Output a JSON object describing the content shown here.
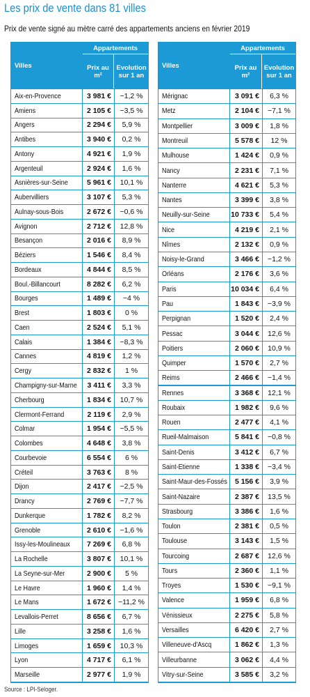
{
  "title": "Les prix de vente dans 81 villes",
  "subtitle": "Prix de vente signé au mètre carré des appartements anciens en février 2019",
  "tables": [
    {
      "headers": {
        "city": "Villes",
        "group": "Appartements",
        "price": "Prix au m²",
        "change": "Evolution sur 1 an"
      },
      "rows": [
        [
          "Aix-en-Provence",
          "3 981 €",
          "−1,2 %"
        ],
        [
          "Amiens",
          "2 105 €",
          "−3,5 %"
        ],
        [
          "Angers",
          "2 294 €",
          "5,9 %"
        ],
        [
          "Antibes",
          "3 940 €",
          "0,2 %"
        ],
        [
          "Antony",
          "4 921 €",
          "1,9 %"
        ],
        [
          "Argenteuil",
          "2 924 €",
          "1,6 %"
        ],
        [
          "Asnières-sur-Seine",
          "5 961 €",
          "10,1 %"
        ],
        [
          "Aubervilliers",
          "3 107 €",
          "5,3 %"
        ],
        [
          "Aulnay-sous-Bois",
          "2 672 €",
          "−0,6 %"
        ],
        [
          "Avignon",
          "2 712 €",
          "12,8 %"
        ],
        [
          "Besançon",
          "2 016 €",
          "8,9 %"
        ],
        [
          "Béziers",
          "1 546 €",
          "8,4 %"
        ],
        [
          "Bordeaux",
          "4 844 €",
          "8,5 %"
        ],
        [
          "Boul.-Billancourt",
          "8 282 €",
          "6,2 %"
        ],
        [
          "Bourges",
          "1 489 €",
          "−4 %"
        ],
        [
          "Brest",
          "1 803 €",
          "0 %"
        ],
        [
          "Caen",
          "2 524 €",
          "5,1 %"
        ],
        [
          "Calais",
          "1 384 €",
          "−8,3 %"
        ],
        [
          "Cannes",
          "4 819 €",
          "1,2 %"
        ],
        [
          "Cergy",
          "2 832 €",
          "1 %"
        ],
        [
          "Champigny-sur-Marne",
          "3 411 €",
          "3,3 %"
        ],
        [
          "Cherbourg",
          "1 834 €",
          "10,7 %"
        ],
        [
          "Clermont-Ferrand",
          "2 119 €",
          "2,9 %"
        ],
        [
          "Colmar",
          "1 954 €",
          "−5,5 %"
        ],
        [
          "Colombes",
          "4 648 €",
          "3,8 %"
        ],
        [
          "Courbevoie",
          "6 554 €",
          "6 %"
        ],
        [
          "Créteil",
          "3 763 €",
          "8 %"
        ],
        [
          "Dijon",
          "2 417 €",
          "−2,5 %"
        ],
        [
          "Drancy",
          "2 769 €",
          "−7,7 %"
        ],
        [
          "Dunkerque",
          "1 782 €",
          "8,2 %"
        ],
        [
          "Grenoble",
          "2 610 €",
          "−1,6 %"
        ],
        [
          "Issy-les-Moulineaux",
          "7 269 €",
          "6,8 %"
        ],
        [
          "La Rochelle",
          "3 807 €",
          "10,1 %"
        ],
        [
          "La Seyne-sur-Mer",
          "2 900 €",
          "5 %"
        ],
        [
          "Le Havre",
          "1 960 €",
          "1,4 %"
        ],
        [
          "Le Mans",
          "1 672 €",
          "−11,2 %"
        ],
        [
          "Levallois-Perret",
          "8 656 €",
          "6,7 %"
        ],
        [
          "Lille",
          "3 258 €",
          "1,6 %"
        ],
        [
          "Limoges",
          "1 659 €",
          "10,3 %"
        ],
        [
          "Lyon",
          "4 717 €",
          "6,1 %"
        ],
        [
          "Marseille",
          "2 977 €",
          "1,9 %"
        ]
      ]
    },
    {
      "headers": {
        "city": "Villes",
        "group": "Appartements",
        "price": "Prix au m²",
        "change": "Evolution sur 1 an"
      },
      "rows": [
        [
          "Mérignac",
          "3 091 €",
          "6,3 %"
        ],
        [
          "Metz",
          "2 104 €",
          "−7,1 %"
        ],
        [
          "Montpellier",
          "3 009 €",
          "1,8 %"
        ],
        [
          "Montreuil",
          "5 578 €",
          "12 %"
        ],
        [
          "Mulhouse",
          "1 424 €",
          "0,9 %"
        ],
        [
          "Nancy",
          "2 231 €",
          "7,1 %"
        ],
        [
          "Nanterre",
          "4 621 €",
          "5,3 %"
        ],
        [
          "Nantes",
          "3 399 €",
          "3,8 %"
        ],
        [
          "Neuilly-sur-Seine",
          "10 733 €",
          "5,4 %"
        ],
        [
          "Nice",
          "4 219 €",
          "2,1 %"
        ],
        [
          "Nîmes",
          "2 132 €",
          "0,9 %"
        ],
        [
          "Noisy-le-Grand",
          "3 466 €",
          "−1,2 %"
        ],
        [
          "Orléans",
          "2 176 €",
          "3,6 %"
        ],
        [
          "Paris",
          "10 034 €",
          "6,4 %"
        ],
        [
          "Pau",
          "1 843 €",
          "−3,9 %"
        ],
        [
          "Perpignan",
          "1 520 €",
          "2,4 %"
        ],
        [
          "Pessac",
          "3 044 €",
          "12,6 %"
        ],
        [
          "Poitiers",
          "2 060 €",
          "10,9 %"
        ],
        [
          "Quimper",
          "1 570 €",
          "2,7 %"
        ],
        [
          "Reims",
          "2 466 €",
          "−1,4 %"
        ],
        [
          "Rennes",
          "3 368 €",
          "12,1 %"
        ],
        [
          "Roubaix",
          "1 982 €",
          "9,6 %"
        ],
        [
          "Rouen",
          "2 477 €",
          "4,1 %"
        ],
        [
          "Rueil-Malmaison",
          "5 841 €",
          "−0,8 %"
        ],
        [
          "Saint-Denis",
          "3 412 €",
          "6,7 %"
        ],
        [
          "Saint-Etienne",
          "1 338 €",
          "−3,4 %"
        ],
        [
          "Saint-Maur-des-Fossés",
          "5 156 €",
          "3,9 %"
        ],
        [
          "Saint-Nazaire",
          "2 387 €",
          "13,5 %"
        ],
        [
          "Strasbourg",
          "3 386 €",
          "1,6 %"
        ],
        [
          "Toulon",
          "2 381 €",
          "0,5 %"
        ],
        [
          "Toulouse",
          "3 143 €",
          "1,5 %"
        ],
        [
          "Tourcoing",
          "2 687 €",
          "12,6 %"
        ],
        [
          "Tours",
          "2 360 €",
          "1,1 %"
        ],
        [
          "Troyes",
          "1 530 €",
          "−9,1 %"
        ],
        [
          "Valence",
          "1 959 €",
          "6,8 %"
        ],
        [
          "Vénissieux",
          "2 275 €",
          "5,8 %"
        ],
        [
          "Versailles",
          "6 420 €",
          "2,7 %"
        ],
        [
          "Villeneuve-d'Ascq",
          "1 862 €",
          "1,3 %"
        ],
        [
          "Villeurbanne",
          "3 062 €",
          "4,4 %"
        ],
        [
          "Vitry-sur-Seine",
          "3 585 €",
          "3,2 %"
        ]
      ]
    }
  ],
  "source": "Source : LPI-Seloger."
}
